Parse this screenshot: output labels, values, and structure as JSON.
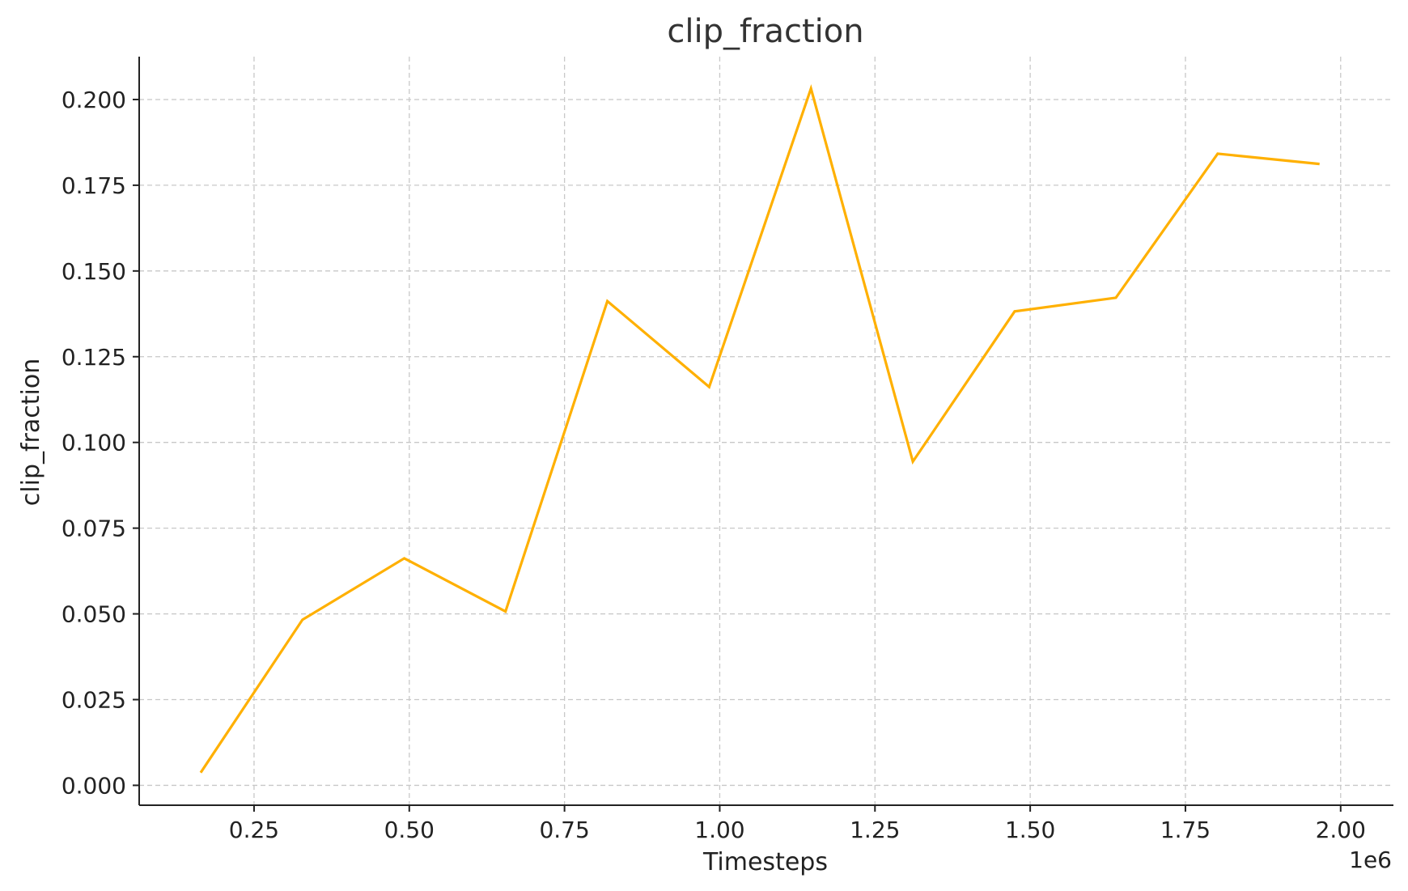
{
  "chart_data": {
    "type": "line",
    "title": "clip_fraction",
    "xlabel": "Timesteps",
    "ylabel": "clip_fraction",
    "x_offset_label": "1e6",
    "x_scale": 1000000,
    "xlim": [
      0.065,
      2.085
    ],
    "ylim": [
      -0.0058,
      0.2125
    ],
    "x_ticks": [
      {
        "value": 0.25,
        "label": "0.25"
      },
      {
        "value": 0.5,
        "label": "0.50"
      },
      {
        "value": 0.75,
        "label": "0.75"
      },
      {
        "value": 1.0,
        "label": "1.00"
      },
      {
        "value": 1.25,
        "label": "1.25"
      },
      {
        "value": 1.5,
        "label": "1.50"
      },
      {
        "value": 1.75,
        "label": "1.75"
      },
      {
        "value": 2.0,
        "label": "2.00"
      }
    ],
    "y_ticks": [
      {
        "value": 0.0,
        "label": "0.000"
      },
      {
        "value": 0.025,
        "label": "0.025"
      },
      {
        "value": 0.05,
        "label": "0.050"
      },
      {
        "value": 0.075,
        "label": "0.075"
      },
      {
        "value": 0.1,
        "label": "0.100"
      },
      {
        "value": 0.125,
        "label": "0.125"
      },
      {
        "value": 0.15,
        "label": "0.150"
      },
      {
        "value": 0.175,
        "label": "0.175"
      },
      {
        "value": 0.2,
        "label": "0.200"
      }
    ],
    "grid": true,
    "series": [
      {
        "color": "#FFB000",
        "x": [
          0.164,
          0.328,
          0.492,
          0.655,
          0.819,
          0.983,
          1.147,
          1.311,
          1.475,
          1.638,
          1.802,
          1.966
        ],
        "y": [
          0.0037,
          0.0483,
          0.0662,
          0.0507,
          0.1412,
          0.1162,
          0.2032,
          0.0944,
          0.1382,
          0.1422,
          0.1842,
          0.1812
        ]
      }
    ]
  }
}
